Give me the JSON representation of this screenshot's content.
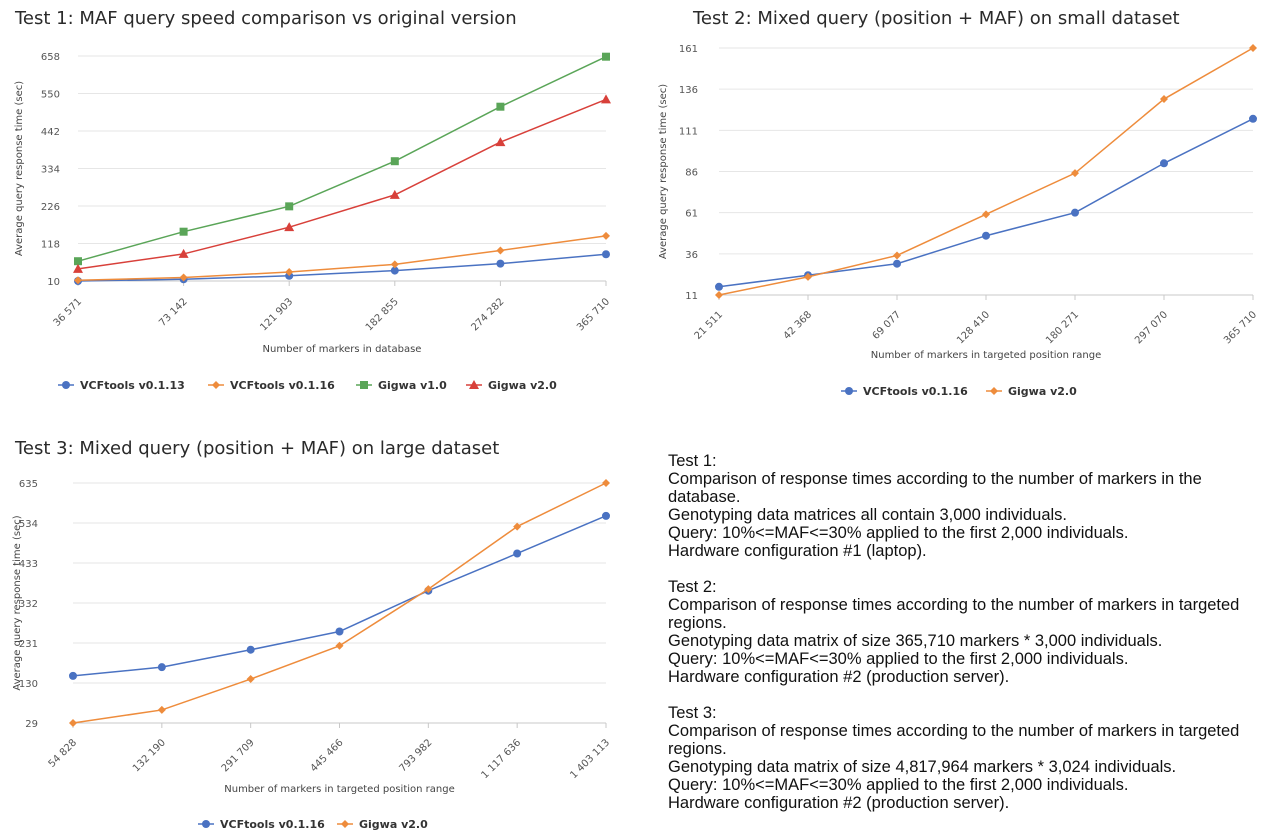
{
  "chart_data": [
    {
      "type": "line",
      "title": "Test 1: MAF query speed comparison vs original version",
      "xlabel": "Number of markers in database",
      "ylabel": "Average query response time (sec)",
      "x_tick_labels": [
        "36 571",
        "73 142",
        "121 903",
        "182 855",
        "274 282",
        "365 710"
      ],
      "x": [
        36571,
        73142,
        121903,
        182855,
        274282,
        365710
      ],
      "y_ticks": [
        10,
        118,
        226,
        334,
        442,
        550,
        658
      ],
      "ylim": [
        10,
        658
      ],
      "grid": true,
      "legend_position": "bottom",
      "series": [
        {
          "name": "VCFtools v0.1.13",
          "color": "#4a72c2",
          "marker": "circle",
          "values": [
            10,
            15,
            25,
            40,
            60,
            87
          ]
        },
        {
          "name": "VCFtools v0.1.16",
          "color": "#ee8c3c",
          "marker": "diamond",
          "values": [
            12,
            20,
            36,
            58,
            98,
            140
          ]
        },
        {
          "name": "Gigwa v1.0",
          "color": "#5aa558",
          "marker": "square",
          "values": [
            67,
            152,
            225,
            355,
            512,
            656
          ]
        },
        {
          "name": "Gigwa v2.0",
          "color": "#d8403a",
          "marker": "triangle",
          "values": [
            45,
            88,
            165,
            258,
            410,
            533
          ]
        }
      ]
    },
    {
      "type": "line",
      "title": "Test 2: Mixed query (position + MAF) on small dataset",
      "xlabel": "Number of markers in targeted position range",
      "ylabel": "Average query response time (sec)",
      "x_tick_labels": [
        "21 511",
        "42 368",
        "69 077",
        "128 410",
        "180 271",
        "297 070",
        "365 710"
      ],
      "x": [
        21511,
        42368,
        69077,
        128410,
        180271,
        297070,
        365710
      ],
      "y_ticks": [
        11,
        36,
        61,
        86,
        111,
        136,
        161
      ],
      "ylim": [
        11,
        161
      ],
      "grid": true,
      "legend_position": "bottom",
      "series": [
        {
          "name": "VCFtools v0.1.16",
          "color": "#4a72c2",
          "marker": "circle",
          "values": [
            16,
            23,
            30,
            47,
            61,
            91,
            118
          ]
        },
        {
          "name": "Gigwa v2.0",
          "color": "#ee8c3c",
          "marker": "diamond",
          "values": [
            11,
            22,
            35,
            60,
            85,
            130,
            161
          ]
        }
      ]
    },
    {
      "type": "line",
      "title": "Test 3: Mixed query (position + MAF) on large dataset",
      "xlabel": "Number of markers in targeted position range",
      "ylabel": "Average query response time (sec)",
      "x_tick_labels": [
        "54 828",
        "132 190",
        "291 709",
        "445 466",
        "793 982",
        "1 117 636",
        "1 403 113"
      ],
      "x": [
        54828,
        132190,
        291709,
        445466,
        793982,
        1117636,
        1403113
      ],
      "y_ticks": [
        29,
        130,
        231,
        332,
        433,
        534,
        635
      ],
      "ylim": [
        29,
        635
      ],
      "grid": true,
      "legend_position": "bottom",
      "series": [
        {
          "name": "VCFtools v0.1.16",
          "color": "#4a72c2",
          "marker": "circle",
          "values": [
            148,
            170,
            214,
            260,
            363,
            457,
            552
          ]
        },
        {
          "name": "Gigwa v2.0",
          "color": "#ee8c3c",
          "marker": "diamond",
          "values": [
            29,
            62,
            140,
            224,
            367,
            525,
            635
          ]
        }
      ]
    }
  ],
  "notes": [
    {
      "heading": "Test 1:",
      "lines": [
        "Comparison of response times according to the number of markers in the database.",
        "Genotyping data matrices all contain 3,000 individuals.",
        "Query: 10%<=MAF<=30% applied to the first 2,000 individuals.",
        "Hardware configuration #1 (laptop)."
      ]
    },
    {
      "heading": "Test 2:",
      "lines": [
        "Comparison of response times according to the number of markers in targeted regions.",
        "Genotyping data matrix of size 365,710 markers * 3,000 individuals.",
        "Query: 10%<=MAF<=30% applied to the first 2,000 individuals.",
        "Hardware configuration #2 (production server)."
      ]
    },
    {
      "heading": "Test 3:",
      "lines": [
        "Comparison of response times according to the number of markers in targeted regions.",
        "Genotyping data matrix of size 4,817,964 markers * 3,024 individuals.",
        "Query: 10%<=MAF<=30% applied to the first 2,000 individuals.",
        "Hardware configuration #2 (production server)."
      ]
    }
  ]
}
